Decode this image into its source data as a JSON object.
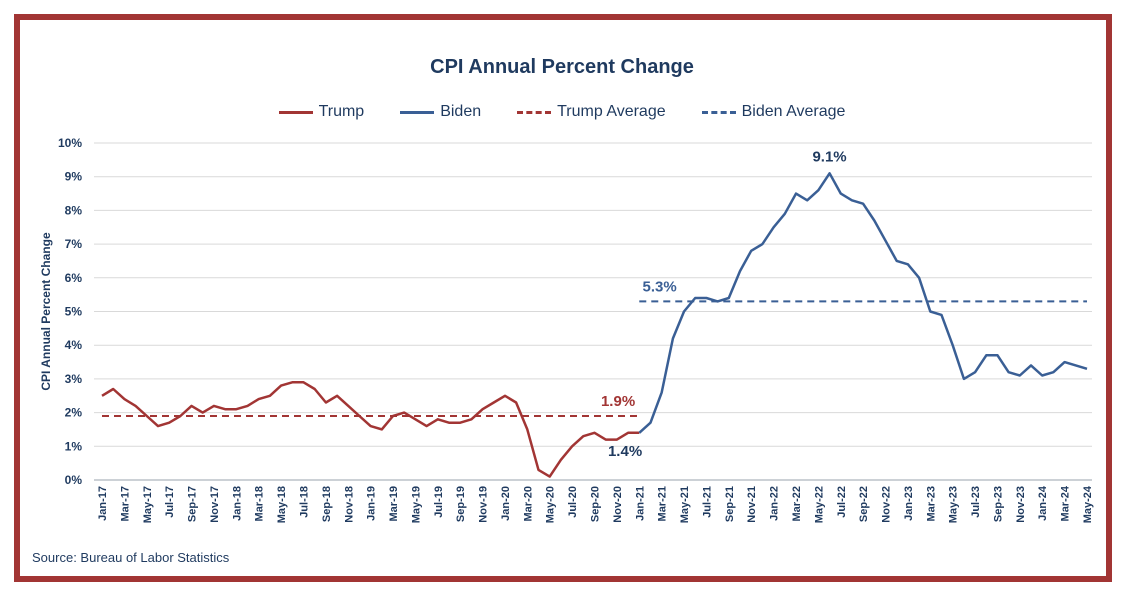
{
  "chart_data": {
    "type": "line",
    "title": "CPI Annual Percent Change",
    "xlabel": "",
    "ylabel": "CPI Annual Percent Change",
    "ylim": [
      0,
      10
    ],
    "y_ticks": [
      "0%",
      "1%",
      "2%",
      "3%",
      "4%",
      "5%",
      "6%",
      "7%",
      "8%",
      "9%",
      "10%"
    ],
    "grid": true,
    "legend_position": "top-center",
    "x_tick_labels": [
      "Jan-17",
      "Mar-17",
      "May-17",
      "Jul-17",
      "Sep-17",
      "Nov-17",
      "Jan-18",
      "Mar-18",
      "May-18",
      "Jul-18",
      "Sep-18",
      "Nov-18",
      "Jan-19",
      "Mar-19",
      "May-19",
      "Jul-19",
      "Sep-19",
      "Nov-19",
      "Jan-20",
      "Mar-20",
      "May-20",
      "Jul-20",
      "Sep-20",
      "Nov-20",
      "Jan-21",
      "Mar-21",
      "May-21",
      "Jul-21",
      "Sep-21",
      "Nov-21",
      "Jan-22",
      "Mar-22",
      "May-22",
      "Jul-22",
      "Sep-22",
      "Nov-22",
      "Jan-23",
      "Mar-23",
      "May-23",
      "Jul-23",
      "Sep-23",
      "Nov-23",
      "Jan-24",
      "Mar-24",
      "May-24"
    ],
    "series": [
      {
        "name": "Trump",
        "color": "#a23534",
        "style": "solid",
        "x_start": "Jan-17",
        "values": [
          2.5,
          2.7,
          2.4,
          2.2,
          1.9,
          1.6,
          1.7,
          1.9,
          2.2,
          2.0,
          2.2,
          2.1,
          2.1,
          2.2,
          2.4,
          2.5,
          2.8,
          2.9,
          2.9,
          2.7,
          2.3,
          2.5,
          2.2,
          1.9,
          1.6,
          1.5,
          1.9,
          2.0,
          1.8,
          1.6,
          1.8,
          1.7,
          1.7,
          1.8,
          2.1,
          2.3,
          2.5,
          2.3,
          1.5,
          0.3,
          0.1,
          0.6,
          1.0,
          1.3,
          1.4,
          1.2,
          1.2,
          1.4,
          1.4
        ]
      },
      {
        "name": "Biden",
        "color": "#3a5f95",
        "style": "solid",
        "x_start": "Jan-21",
        "values": [
          1.4,
          1.7,
          2.6,
          4.2,
          5.0,
          5.4,
          5.4,
          5.3,
          5.4,
          6.2,
          6.8,
          7.0,
          7.5,
          7.9,
          8.5,
          8.3,
          8.6,
          9.1,
          8.5,
          8.3,
          8.2,
          7.7,
          7.1,
          6.5,
          6.4,
          6.0,
          5.0,
          4.9,
          4.0,
          3.0,
          3.2,
          3.7,
          3.7,
          3.2,
          3.1,
          3.4,
          3.1,
          3.2,
          3.5,
          3.4,
          3.3
        ]
      },
      {
        "name": "Trump Average",
        "color": "#a23534",
        "style": "dashed",
        "value": 1.9,
        "x_range": [
          "Jan-17",
          "Jan-21"
        ]
      },
      {
        "name": "Biden Average",
        "color": "#3a5f95",
        "style": "dashed",
        "value": 5.3,
        "x_range": [
          "Jan-21",
          "May-24"
        ]
      }
    ],
    "annotations": [
      {
        "text": "9.1%",
        "color": "#1f3a5f"
      },
      {
        "text": "5.3%",
        "color": "#3a5f95"
      },
      {
        "text": "1.9%",
        "color": "#a23534"
      },
      {
        "text": "1.4%",
        "color": "#1f3a5f"
      }
    ],
    "source": "Source: Bureau of Labor Statistics"
  }
}
